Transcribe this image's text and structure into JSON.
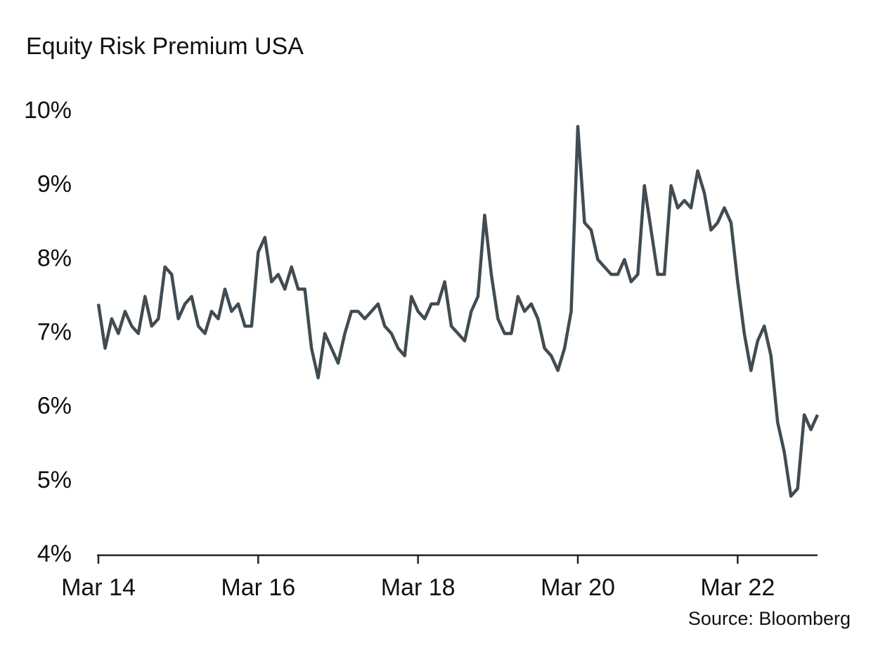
{
  "chart_data": {
    "type": "line",
    "title": "Equity Risk Premium USA",
    "source": "Source: Bloomberg",
    "x": [
      "2014-03",
      "2014-04",
      "2014-05",
      "2014-06",
      "2014-07",
      "2014-08",
      "2014-09",
      "2014-10",
      "2014-11",
      "2014-12",
      "2015-01",
      "2015-02",
      "2015-03",
      "2015-04",
      "2015-05",
      "2015-06",
      "2015-07",
      "2015-08",
      "2015-09",
      "2015-10",
      "2015-11",
      "2015-12",
      "2016-01",
      "2016-02",
      "2016-03",
      "2016-04",
      "2016-05",
      "2016-06",
      "2016-07",
      "2016-08",
      "2016-09",
      "2016-10",
      "2016-11",
      "2016-12",
      "2017-01",
      "2017-02",
      "2017-03",
      "2017-04",
      "2017-05",
      "2017-06",
      "2017-07",
      "2017-08",
      "2017-09",
      "2017-10",
      "2017-11",
      "2017-12",
      "2018-01",
      "2018-02",
      "2018-03",
      "2018-04",
      "2018-05",
      "2018-06",
      "2018-07",
      "2018-08",
      "2018-09",
      "2018-10",
      "2018-11",
      "2018-12",
      "2019-01",
      "2019-02",
      "2019-03",
      "2019-04",
      "2019-05",
      "2019-06",
      "2019-07",
      "2019-08",
      "2019-09",
      "2019-10",
      "2019-11",
      "2019-12",
      "2020-01",
      "2020-02",
      "2020-03",
      "2020-04",
      "2020-05",
      "2020-06",
      "2020-07",
      "2020-08",
      "2020-09",
      "2020-10",
      "2020-11",
      "2020-12",
      "2021-01",
      "2021-02",
      "2021-03",
      "2021-04",
      "2021-05",
      "2021-06",
      "2021-07",
      "2021-08",
      "2021-09",
      "2021-10",
      "2021-11",
      "2021-12",
      "2022-01",
      "2022-02",
      "2022-03",
      "2022-04",
      "2022-05",
      "2022-06",
      "2022-07",
      "2022-08",
      "2022-09",
      "2022-10",
      "2022-11",
      "2022-12",
      "2023-01",
      "2023-02",
      "2023-03"
    ],
    "series": [
      {
        "name": "Equity Risk Premium",
        "color": "#414b52",
        "values": [
          7.4,
          6.8,
          7.2,
          7.0,
          7.3,
          7.1,
          7.0,
          7.5,
          7.1,
          7.2,
          7.9,
          7.8,
          7.2,
          7.4,
          7.5,
          7.1,
          7.0,
          7.3,
          7.2,
          7.6,
          7.3,
          7.4,
          7.1,
          7.1,
          8.1,
          8.3,
          7.7,
          7.8,
          7.6,
          7.9,
          7.6,
          7.6,
          6.8,
          6.4,
          7.0,
          6.8,
          6.6,
          7.0,
          7.3,
          7.3,
          7.2,
          7.3,
          7.4,
          7.1,
          7.0,
          6.8,
          6.7,
          7.5,
          7.3,
          7.2,
          7.4,
          7.4,
          7.7,
          7.1,
          7.0,
          6.9,
          7.3,
          7.5,
          8.6,
          7.8,
          7.2,
          7.0,
          7.0,
          7.5,
          7.3,
          7.4,
          7.2,
          6.8,
          6.7,
          6.5,
          6.8,
          7.3,
          9.8,
          8.5,
          8.4,
          8.0,
          7.9,
          7.8,
          7.8,
          8.0,
          7.7,
          7.8,
          9.0,
          8.4,
          7.8,
          7.8,
          9.0,
          8.7,
          8.8,
          8.7,
          9.2,
          8.9,
          8.4,
          8.5,
          8.7,
          8.5,
          7.7,
          7.0,
          6.5,
          6.9,
          7.1,
          6.7,
          5.8,
          5.4,
          4.8,
          4.9,
          5.9,
          5.7,
          5.9
        ]
      }
    ],
    "xlim": [
      "2014-03",
      "2023-03"
    ],
    "xticks": [
      {
        "value": "2014-03",
        "label": "Mar 14"
      },
      {
        "value": "2016-03",
        "label": "Mar 16"
      },
      {
        "value": "2018-03",
        "label": "Mar 18"
      },
      {
        "value": "2020-03",
        "label": "Mar 20"
      },
      {
        "value": "2022-03",
        "label": "Mar 22"
      }
    ],
    "ylim": [
      4,
      10
    ],
    "yticks": [
      {
        "value": 4,
        "label": "4%"
      },
      {
        "value": 5,
        "label": "5%"
      },
      {
        "value": 6,
        "label": "6%"
      },
      {
        "value": 7,
        "label": "7%"
      },
      {
        "value": 8,
        "label": "8%"
      },
      {
        "value": 9,
        "label": "9%"
      },
      {
        "value": 10,
        "label": "10%"
      }
    ],
    "grid": false
  }
}
